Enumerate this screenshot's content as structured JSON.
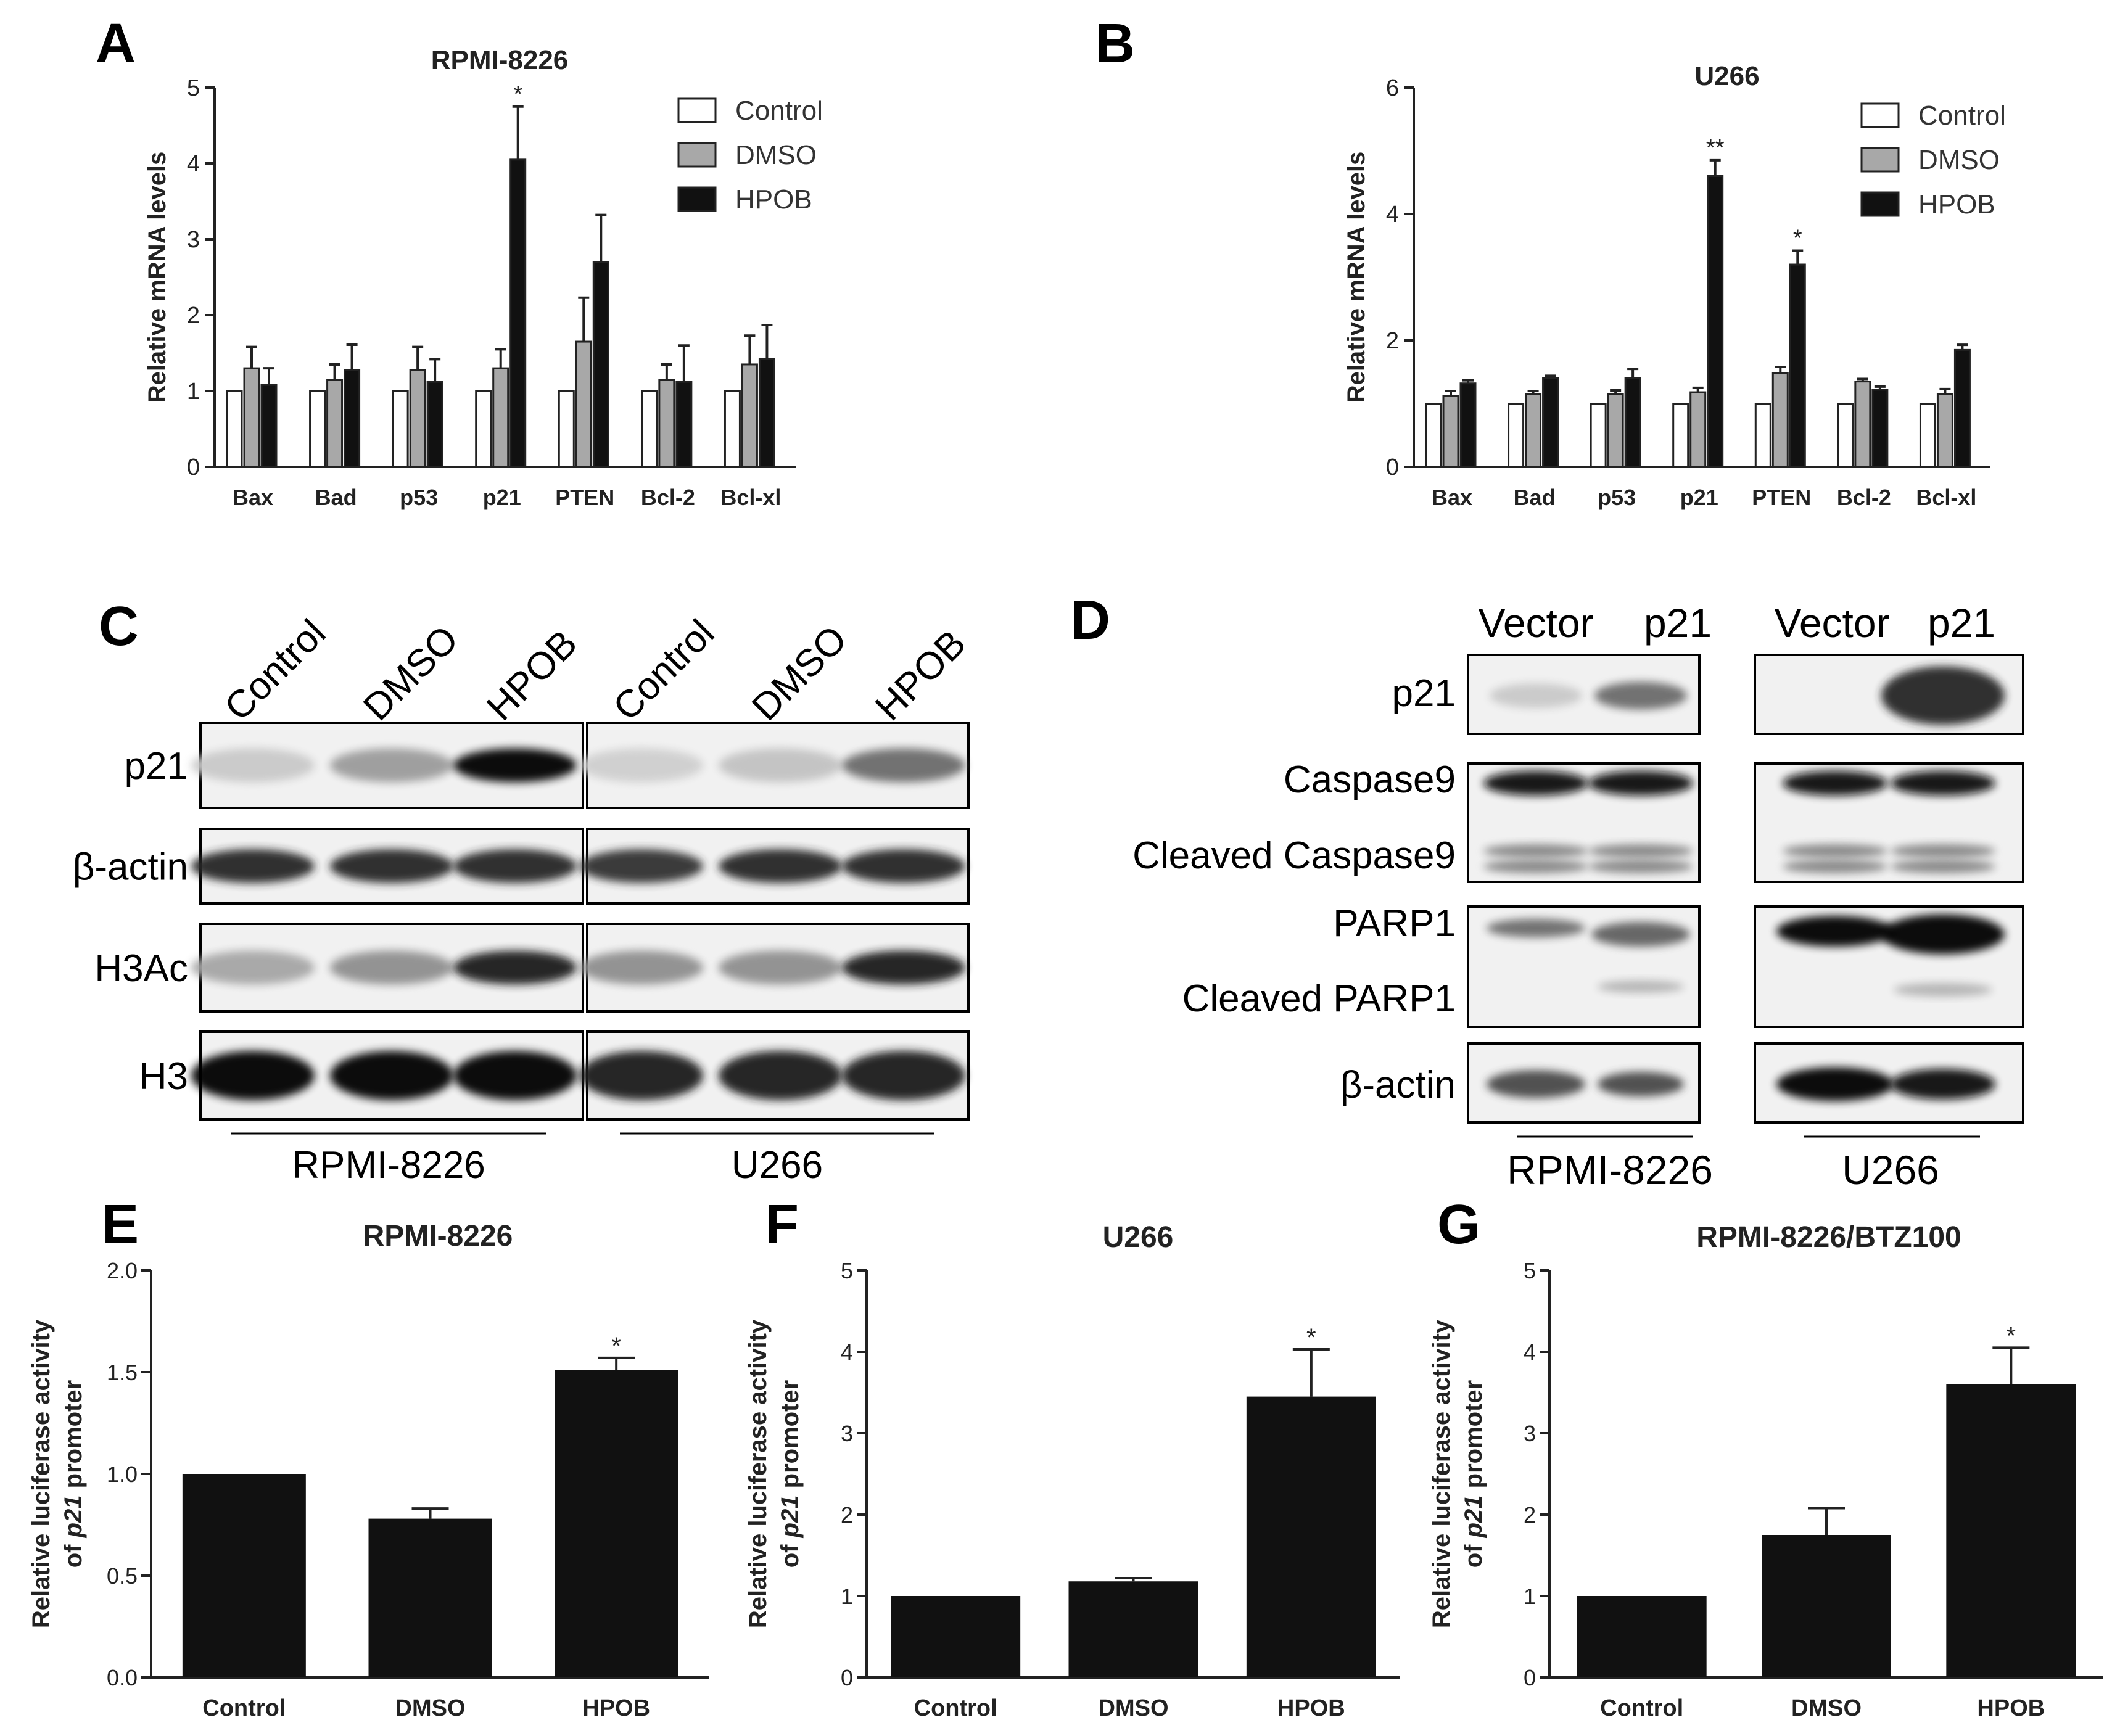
{
  "panels": {
    "A": {
      "letter": "A"
    },
    "B": {
      "letter": "B"
    },
    "C": {
      "letter": "C"
    },
    "D": {
      "letter": "D"
    },
    "E": {
      "letter": "E"
    },
    "F": {
      "letter": "F"
    },
    "G": {
      "letter": "G"
    }
  },
  "legend": [
    "Control",
    "DMSO",
    "HPOB"
  ],
  "colors": {
    "control": "#ffffff",
    "dmso": "#a8a8a8",
    "hpob": "#111111",
    "axis": "#222222"
  },
  "chart_data": [
    {
      "id": "A",
      "type": "bar",
      "title": "RPMI-8226",
      "ylabel": "Relative mRNA levels",
      "ylim": [
        0,
        5
      ],
      "yticks": [
        "0",
        "1",
        "2",
        "3",
        "4",
        "5"
      ],
      "categories": [
        "Bax",
        "Bad",
        "p53",
        "p21",
        "PTEN",
        "Bcl-2",
        "Bcl-xl"
      ],
      "series": [
        {
          "name": "Control",
          "values": [
            1,
            1,
            1,
            1,
            1,
            1,
            1
          ],
          "err": [
            0,
            0,
            0,
            0,
            0,
            0,
            0
          ]
        },
        {
          "name": "DMSO",
          "values": [
            1.3,
            1.15,
            1.28,
            1.3,
            1.65,
            1.15,
            1.35
          ],
          "err": [
            0.28,
            0.2,
            0.3,
            0.25,
            0.58,
            0.2,
            0.38
          ]
        },
        {
          "name": "HPOB",
          "values": [
            1.08,
            1.28,
            1.12,
            4.05,
            2.7,
            1.12,
            1.42
          ],
          "err": [
            0.22,
            0.33,
            0.3,
            0.7,
            0.62,
            0.48,
            0.45
          ]
        }
      ],
      "annotations": [
        {
          "category": "p21",
          "series": "HPOB",
          "text": "*"
        }
      ],
      "legend_position": "top-right"
    },
    {
      "id": "B",
      "type": "bar",
      "title": "U266",
      "ylabel": "Relative mRNA levels",
      "ylim": [
        0,
        6
      ],
      "yticks": [
        "0",
        "2",
        "4",
        "6"
      ],
      "categories": [
        "Bax",
        "Bad",
        "p53",
        "p21",
        "PTEN",
        "Bcl-2",
        "Bcl-xl"
      ],
      "series": [
        {
          "name": "Control",
          "values": [
            1,
            1,
            1,
            1,
            1,
            1,
            1
          ],
          "err": [
            0,
            0,
            0,
            0,
            0,
            0,
            0
          ]
        },
        {
          "name": "DMSO",
          "values": [
            1.12,
            1.15,
            1.15,
            1.18,
            1.48,
            1.35,
            1.15
          ],
          "err": [
            0.08,
            0.05,
            0.06,
            0.07,
            0.1,
            0.04,
            0.08
          ]
        },
        {
          "name": "HPOB",
          "values": [
            1.32,
            1.4,
            1.4,
            4.6,
            3.2,
            1.22,
            1.85
          ],
          "err": [
            0.05,
            0.04,
            0.15,
            0.25,
            0.22,
            0.05,
            0.08
          ]
        }
      ],
      "annotations": [
        {
          "category": "p21",
          "series": "HPOB",
          "text": "**"
        },
        {
          "category": "PTEN",
          "series": "HPOB",
          "text": "*"
        }
      ],
      "legend_position": "top-right"
    },
    {
      "id": "E",
      "type": "bar",
      "title": "RPMI-8226",
      "ylabel_line1": "Relative luciferase activity",
      "ylabel_line2_prefix": "of ",
      "ylabel_line2_gene": "p21",
      "ylabel_line2_suffix": " promoter",
      "ylim": [
        0,
        2.0
      ],
      "yticks": [
        "0.0",
        "0.5",
        "1.0",
        "1.5",
        "2.0"
      ],
      "categories": [
        "Control",
        "DMSO",
        "HPOB"
      ],
      "values": [
        1.0,
        0.78,
        1.51
      ],
      "err": [
        0,
        0.05,
        0.06
      ],
      "annotations": [
        {
          "category": "HPOB",
          "text": "*"
        }
      ]
    },
    {
      "id": "F",
      "type": "bar",
      "title": "U266",
      "ylabel_line1": "Relative luciferase activity",
      "ylabel_line2_prefix": "of ",
      "ylabel_line2_gene": "p21",
      "ylabel_line2_suffix": " promoter",
      "ylim": [
        0,
        5
      ],
      "yticks": [
        "0",
        "1",
        "2",
        "3",
        "4",
        "5"
      ],
      "categories": [
        "Control",
        "DMSO",
        "HPOB"
      ],
      "values": [
        1.0,
        1.18,
        3.45
      ],
      "err": [
        0,
        0.04,
        0.58
      ],
      "annotations": [
        {
          "category": "HPOB",
          "text": "*"
        }
      ]
    },
    {
      "id": "G",
      "type": "bar",
      "title": "RPMI-8226/BTZ100",
      "ylabel_line1": "Relative luciferase activity",
      "ylabel_line2_prefix": "of ",
      "ylabel_line2_gene": "p21",
      "ylabel_line2_suffix": " promoter",
      "ylim": [
        0,
        5
      ],
      "yticks": [
        "0",
        "1",
        "2",
        "3",
        "4",
        "5"
      ],
      "categories": [
        "Control",
        "DMSO",
        "HPOB"
      ],
      "values": [
        1.0,
        1.75,
        3.6
      ],
      "err": [
        0,
        0.33,
        0.45
      ],
      "annotations": [
        {
          "category": "HPOB",
          "text": "*"
        }
      ]
    }
  ],
  "blotC": {
    "lanes": [
      "Control",
      "DMSO",
      "HPOB",
      "Control",
      "DMSO",
      "HPOB"
    ],
    "rows": [
      "p21",
      "β-actin",
      "H3Ac",
      "H3"
    ],
    "groups": [
      "RPMI-8226",
      "U266"
    ],
    "intensity": {
      "p21": [
        [
          0.15,
          0.35,
          1.0
        ],
        [
          0.12,
          0.18,
          0.55
        ]
      ],
      "β-actin": [
        [
          0.85,
          0.85,
          0.85
        ],
        [
          0.8,
          0.85,
          0.85
        ]
      ],
      "H3Ac": [
        [
          0.3,
          0.4,
          0.9
        ],
        [
          0.4,
          0.4,
          0.9
        ]
      ],
      "H3": [
        [
          1.0,
          1.0,
          1.0
        ],
        [
          0.9,
          0.9,
          0.9
        ]
      ]
    }
  },
  "blotD": {
    "lanes": [
      "Vector",
      "p21",
      "Vector",
      "p21"
    ],
    "rows": [
      "p21",
      "Caspase9",
      "Cleaved Caspase9",
      "PARP1",
      "Cleaved PARP1",
      "β-actin"
    ],
    "groups": [
      "RPMI-8226",
      "U266"
    ]
  }
}
